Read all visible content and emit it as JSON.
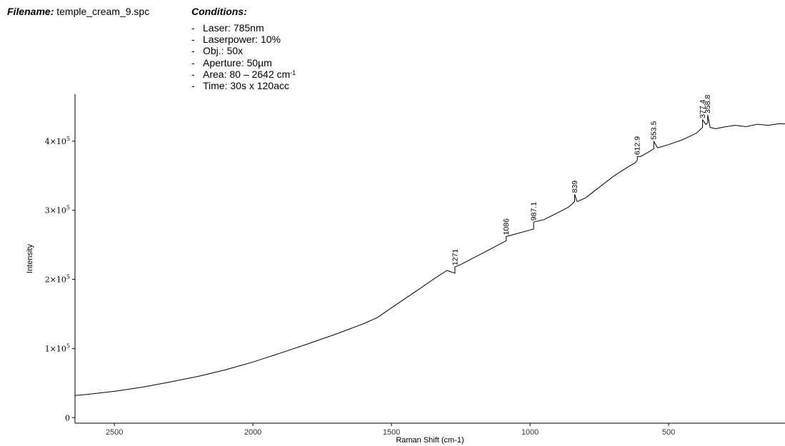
{
  "header": {
    "filename_label": "Filename:",
    "filename_value": "temple_cream_9.spc",
    "conditions_title": "Conditions:",
    "conditions": [
      "Laser: 785nm",
      "Laserpower: 10%",
      "Obj.: 50x",
      "Aperture: 50µm",
      "Area: 80 – 2642 cm",
      "Time: 30s x 120acc"
    ],
    "area_unit_sup": "-1"
  },
  "chart_data": {
    "type": "line",
    "title": "",
    "xlabel": "Raman Shift (cm-1)",
    "ylabel": "Intensity",
    "x_reversed": true,
    "xlim": [
      2642,
      80
    ],
    "ylim": [
      -8000,
      468000
    ],
    "x_ticks": [
      2500,
      2000,
      1500,
      1000,
      500
    ],
    "x_tick_labels": [
      "2500",
      "2000",
      "1500",
      "1000",
      "500"
    ],
    "y_ticks": [
      0,
      100000,
      200000,
      300000,
      400000
    ],
    "y_tick_labels": [
      {
        "mant": "0",
        "exp": ""
      },
      {
        "mant": "1×10",
        "exp": "5"
      },
      {
        "mant": "2×10",
        "exp": "5"
      },
      {
        "mant": "3×10",
        "exp": "5"
      },
      {
        "mant": "4×10",
        "exp": "5"
      }
    ],
    "grid": false,
    "series": [
      {
        "x": [
          2642,
          2600,
          2500,
          2400,
          2300,
          2200,
          2100,
          2000,
          1900,
          1800,
          1700,
          1600,
          1550,
          1500,
          1450,
          1400,
          1350,
          1300,
          1271,
          1271,
          1250,
          1200,
          1150,
          1100,
          1086,
          1086,
          1050,
          1000,
          987.1,
          987.1,
          950,
          900,
          860,
          850,
          839,
          839,
          830,
          800,
          750,
          700,
          650,
          620,
          612.9,
          612.9,
          600,
          570,
          553.5,
          553.5,
          540,
          500,
          450,
          400,
          385,
          377.4,
          377.4,
          365,
          358.8,
          358.8,
          350,
          330,
          300,
          260,
          220,
          180,
          140,
          100,
          80
        ],
        "y": [
          32000,
          33500,
          38000,
          44000,
          51500,
          59500,
          69000,
          80500,
          93500,
          107000,
          121000,
          136000,
          145000,
          159000,
          172500,
          186000,
          200000,
          213000,
          209000,
          218000,
          221500,
          232000,
          242500,
          253000,
          256000,
          262000,
          266000,
          271500,
          273000,
          283000,
          286500,
          296500,
          305000,
          308500,
          313000,
          323000,
          312500,
          318000,
          333500,
          349000,
          362000,
          369000,
          372500,
          378000,
          378000,
          385000,
          389000,
          400000,
          390500,
          395000,
          402000,
          411500,
          417000,
          420000,
          431000,
          424000,
          427000,
          438000,
          420000,
          418000,
          420500,
          423000,
          421000,
          424500,
          423000,
          425500,
          425000
        ]
      }
    ],
    "peak_labels": [
      {
        "x": 1271,
        "y": 218000,
        "label": "1271"
      },
      {
        "x": 1086,
        "y": 262000,
        "label": "1086"
      },
      {
        "x": 987.1,
        "y": 283000,
        "label": "987.1"
      },
      {
        "x": 839,
        "y": 323000,
        "label": "839"
      },
      {
        "x": 612.9,
        "y": 378000,
        "label": "612.9"
      },
      {
        "x": 553.5,
        "y": 400000,
        "label": "553.5"
      },
      {
        "x": 377.4,
        "y": 431000,
        "label": "377.4"
      },
      {
        "x": 358.8,
        "y": 438000,
        "label": "358.8"
      }
    ]
  }
}
